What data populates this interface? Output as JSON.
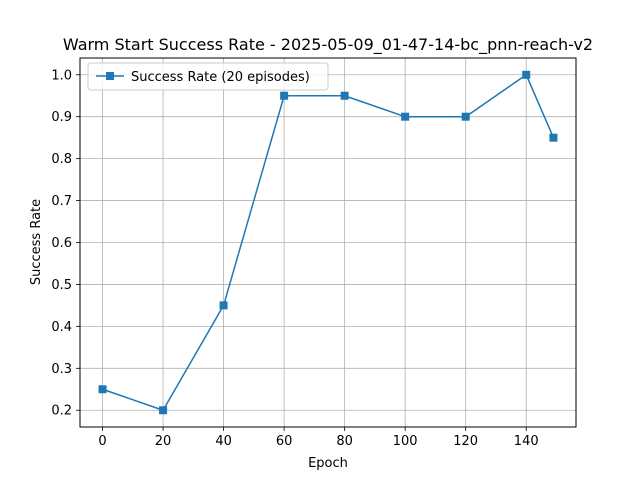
{
  "chart_data": {
    "type": "line",
    "title": "Warm Start Success Rate - 2025-05-09_01-47-14-bc_pnn-reach-v2",
    "xlabel": "Epoch",
    "ylabel": "Success Rate",
    "x": [
      0,
      20,
      40,
      60,
      80,
      100,
      120,
      140,
      149
    ],
    "series": [
      {
        "name": "Success Rate (20 episodes)",
        "values": [
          0.25,
          0.2,
          0.45,
          0.95,
          0.95,
          0.9,
          0.9,
          1.0,
          0.85
        ],
        "color": "#1f77b4",
        "marker": "square"
      }
    ],
    "xlim": [
      -7.45,
      156.45
    ],
    "ylim": [
      0.16,
      1.04
    ],
    "xticks": [
      0,
      20,
      40,
      60,
      80,
      100,
      120,
      140
    ],
    "yticks": [
      0.2,
      0.3,
      0.4,
      0.5,
      0.6,
      0.7,
      0.8,
      0.9,
      1.0
    ],
    "grid": true,
    "legend_position": "top-left"
  }
}
